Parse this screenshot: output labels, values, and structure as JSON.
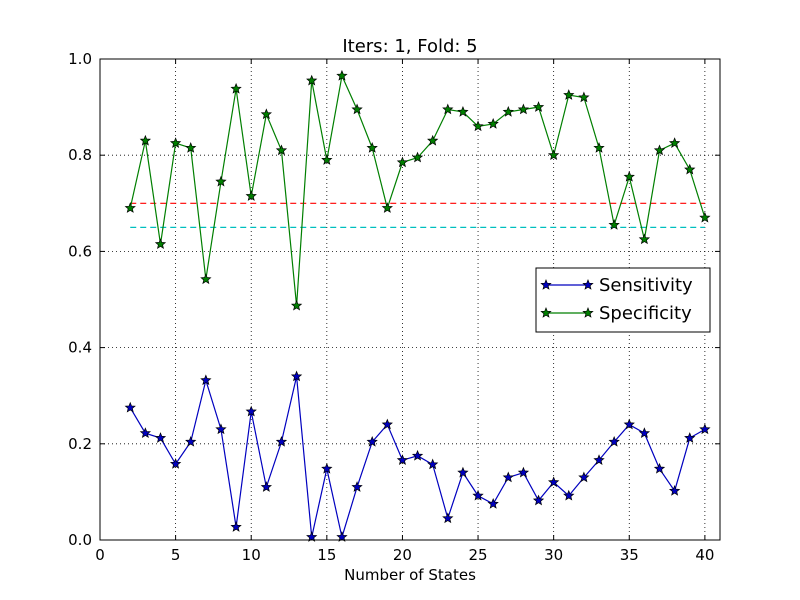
{
  "chart_data": {
    "type": "line",
    "title": "Iters: 1, Fold: 5",
    "xlabel": "Number of States",
    "ylabel": "",
    "xlim": [
      0,
      41
    ],
    "ylim": [
      0.0,
      1.0
    ],
    "x_ticks": [
      0,
      5,
      10,
      15,
      20,
      25,
      30,
      35,
      40
    ],
    "y_ticks": [
      0.0,
      0.2,
      0.4,
      0.6,
      0.8,
      1.0
    ],
    "x_tick_labels": [
      "0",
      "5",
      "10",
      "15",
      "20",
      "25",
      "30",
      "35",
      "40"
    ],
    "y_tick_labels": [
      "0.0",
      "0.2",
      "0.4",
      "0.6",
      "0.8",
      "1.0"
    ],
    "grid": true,
    "legend_position": "center-right",
    "x": [
      2,
      3,
      4,
      5,
      6,
      7,
      8,
      9,
      10,
      11,
      12,
      13,
      14,
      15,
      16,
      17,
      18,
      19,
      20,
      21,
      22,
      23,
      24,
      25,
      26,
      27,
      28,
      29,
      30,
      31,
      32,
      33,
      34,
      35,
      36,
      37,
      38,
      39,
      40
    ],
    "series": [
      {
        "name": "Sensitivity",
        "color": "#0000bf",
        "marker": "star",
        "values": [
          0.275,
          0.222,
          0.212,
          0.158,
          0.204,
          0.332,
          0.23,
          0.027,
          0.267,
          0.11,
          0.204,
          0.34,
          0.006,
          0.148,
          0.006,
          0.11,
          0.204,
          0.24,
          0.166,
          0.175,
          0.157,
          0.045,
          0.14,
          0.092,
          0.075,
          0.13,
          0.14,
          0.082,
          0.12,
          0.092,
          0.13,
          0.166,
          0.204,
          0.24,
          0.222,
          0.148,
          0.102,
          0.212,
          0.23
        ]
      },
      {
        "name": "Specificity",
        "color": "#007f00",
        "marker": "star",
        "values": [
          0.69,
          0.83,
          0.615,
          0.825,
          0.815,
          0.542,
          0.745,
          0.938,
          0.715,
          0.885,
          0.81,
          0.487,
          0.955,
          0.79,
          0.965,
          0.895,
          0.815,
          0.69,
          0.785,
          0.795,
          0.83,
          0.895,
          0.89,
          0.86,
          0.865,
          0.89,
          0.895,
          0.9,
          0.8,
          0.925,
          0.92,
          0.815,
          0.655,
          0.755,
          0.625,
          0.81,
          0.825,
          0.77,
          0.67
        ]
      }
    ],
    "reference_lines": [
      {
        "y": 0.7,
        "x_range": [
          2,
          40
        ],
        "color": "#ff0000",
        "style": "dashed"
      },
      {
        "y": 0.65,
        "x_range": [
          2,
          40
        ],
        "color": "#00bfbf",
        "style": "dashed"
      }
    ]
  }
}
